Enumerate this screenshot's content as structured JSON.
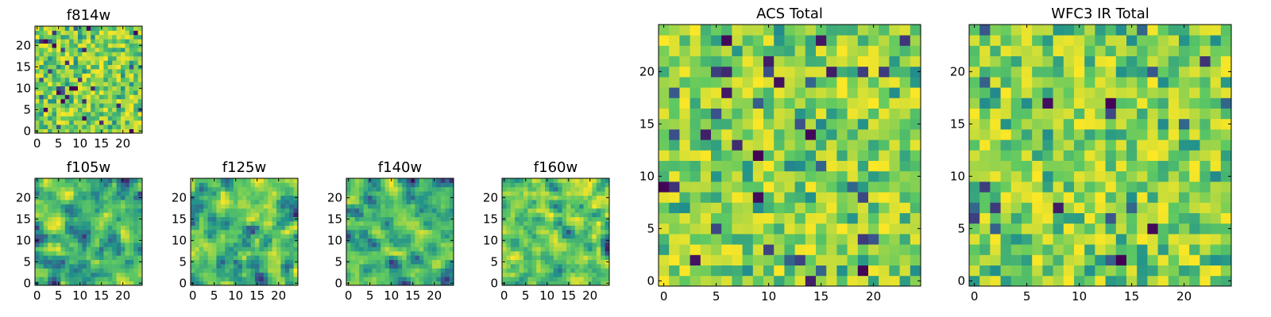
{
  "figure": {
    "colormap": [
      "#440154",
      "#3b528b",
      "#21918c",
      "#5ec962",
      "#fde725"
    ]
  },
  "chart_data": [
    {
      "id": "f814w",
      "type": "heatmap",
      "title": "f814w",
      "grid_size": 25,
      "seed": 11,
      "smooth": 0,
      "xlim": [
        0,
        25
      ],
      "ylim": [
        0,
        25
      ],
      "xticks": [
        0,
        5,
        10,
        15,
        20
      ],
      "xticklabels": [
        "0",
        "5",
        "10",
        "15",
        "20"
      ],
      "yticks": [
        0,
        5,
        10,
        15,
        20
      ],
      "yticklabels": [
        "0",
        "5",
        "10",
        "15",
        "20"
      ]
    },
    {
      "id": "f105w",
      "type": "heatmap",
      "title": "f105w",
      "grid_size": 25,
      "seed": 23,
      "smooth": 1,
      "xlim": [
        0,
        25
      ],
      "ylim": [
        0,
        25
      ],
      "xticks": [
        0,
        5,
        10,
        15,
        20
      ],
      "xticklabels": [
        "0",
        "5",
        "10",
        "15",
        "20"
      ],
      "yticks": [
        0,
        5,
        10,
        15,
        20
      ],
      "yticklabels": [
        "0",
        "5",
        "10",
        "15",
        "20"
      ]
    },
    {
      "id": "f125w",
      "type": "heatmap",
      "title": "f125w",
      "grid_size": 25,
      "seed": 37,
      "smooth": 1,
      "xlim": [
        0,
        25
      ],
      "ylim": [
        0,
        25
      ],
      "xticks": [
        0,
        5,
        10,
        15,
        20
      ],
      "xticklabels": [
        "0",
        "5",
        "10",
        "15",
        "20"
      ],
      "yticks": [
        0,
        5,
        10,
        15,
        20
      ],
      "yticklabels": [
        "0",
        "5",
        "10",
        "15",
        "20"
      ]
    },
    {
      "id": "f140w",
      "type": "heatmap",
      "title": "f140w",
      "grid_size": 25,
      "seed": 41,
      "smooth": 1,
      "xlim": [
        0,
        25
      ],
      "ylim": [
        0,
        25
      ],
      "xticks": [
        0,
        5,
        10,
        15,
        20
      ],
      "xticklabels": [
        "0",
        "5",
        "10",
        "15",
        "20"
      ],
      "yticks": [
        0,
        5,
        10,
        15,
        20
      ],
      "yticklabels": [
        "0",
        "5",
        "10",
        "15",
        "20"
      ]
    },
    {
      "id": "f160w",
      "type": "heatmap",
      "title": "f160w",
      "grid_size": 25,
      "seed": 53,
      "smooth": 1,
      "xlim": [
        0,
        25
      ],
      "ylim": [
        0,
        25
      ],
      "xticks": [
        0,
        5,
        10,
        15,
        20
      ],
      "xticklabels": [
        "0",
        "5",
        "10",
        "15",
        "20"
      ],
      "yticks": [
        0,
        5,
        10,
        15,
        20
      ],
      "yticklabels": [
        "0",
        "5",
        "10",
        "15",
        "20"
      ]
    },
    {
      "id": "acs-total",
      "type": "heatmap",
      "title": "ACS Total",
      "grid_size": 25,
      "seed": 67,
      "smooth": 0,
      "xlim": [
        0,
        25
      ],
      "ylim": [
        0,
        25
      ],
      "xticks": [
        0,
        5,
        10,
        15,
        20
      ],
      "xticklabels": [
        "0",
        "5",
        "10",
        "15",
        "20"
      ],
      "yticks": [
        0,
        5,
        10,
        15,
        20
      ],
      "yticklabels": [
        "0",
        "5",
        "10",
        "15",
        "20"
      ]
    },
    {
      "id": "wfc3-ir-total",
      "type": "heatmap",
      "title": "WFC3 IR Total",
      "grid_size": 25,
      "seed": 79,
      "smooth": 0,
      "xlim": [
        0,
        25
      ],
      "ylim": [
        0,
        25
      ],
      "xticks": [
        0,
        5,
        10,
        15,
        20
      ],
      "xticklabels": [
        "0",
        "5",
        "10",
        "15",
        "20"
      ],
      "yticks": [
        0,
        5,
        10,
        15,
        20
      ],
      "yticklabels": [
        "0",
        "5",
        "10",
        "15",
        "20"
      ]
    }
  ]
}
